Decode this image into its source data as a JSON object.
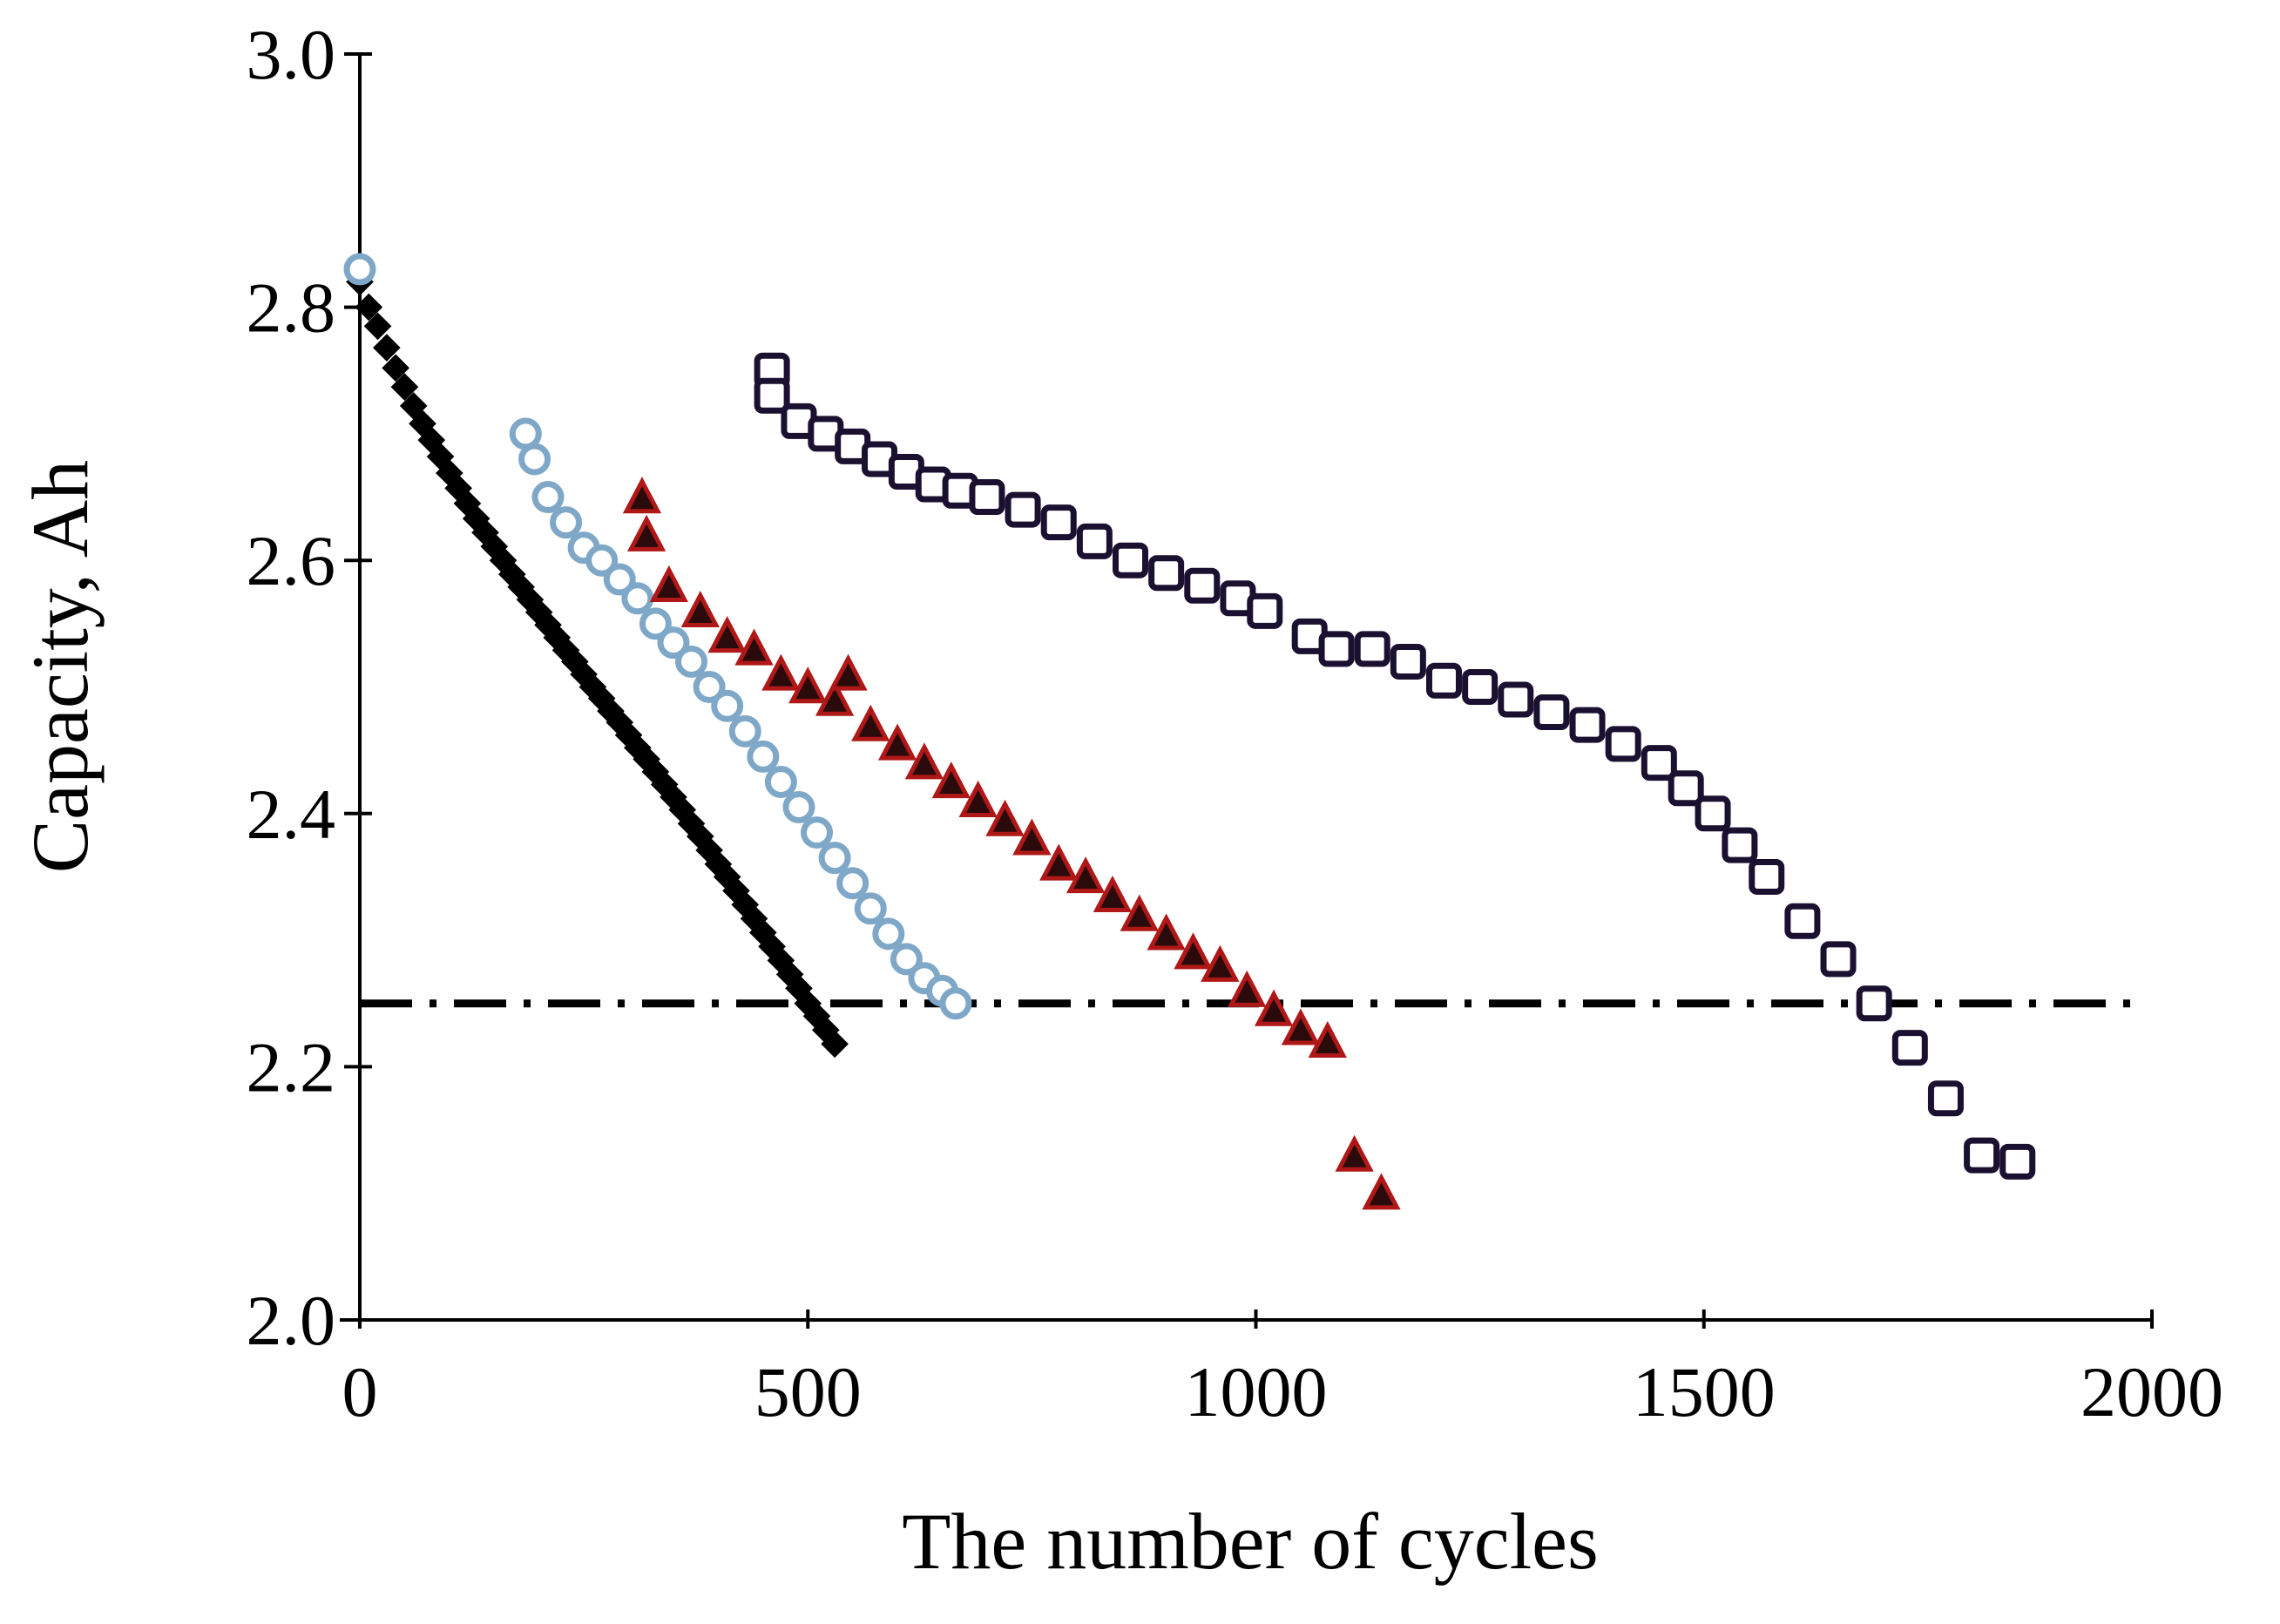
{
  "chart_data": {
    "type": "scatter",
    "title": "",
    "xlabel": "The number of cycles",
    "ylabel": "Capacity, Ah",
    "xlim": [
      0,
      2000
    ],
    "ylim": [
      2.0,
      3.0
    ],
    "xticks": [
      0,
      500,
      1000,
      1500,
      2000
    ],
    "yticks": [
      2.0,
      2.2,
      2.4,
      2.6,
      2.8,
      3.0
    ],
    "xtick_labels": [
      "0",
      "500",
      "1000",
      "1500",
      "2000"
    ],
    "ytick_labels": [
      "2.0",
      "2.2",
      "2.4",
      "2.6",
      "2.8",
      "3.0"
    ],
    "threshold": {
      "y": 2.25,
      "x_range": [
        0,
        1990
      ]
    },
    "series": [
      {
        "name": "series-filled-diamond",
        "marker": "diamond",
        "color": "#000000",
        "x": [
          0,
          10,
          20,
          30,
          40,
          50,
          60,
          70,
          80,
          90,
          100,
          110,
          120,
          130,
          140,
          150,
          160,
          170,
          180,
          190,
          200,
          210,
          220,
          230,
          240,
          250,
          260,
          270,
          280,
          290,
          300,
          310,
          320,
          330,
          340,
          350,
          360,
          370,
          380,
          390,
          400,
          410,
          420,
          430,
          440,
          450,
          460,
          470,
          480,
          490,
          500,
          510,
          520,
          530
        ],
        "y": [
          2.82,
          2.8,
          2.785,
          2.768,
          2.752,
          2.737,
          2.722,
          2.708,
          2.695,
          2.682,
          2.669,
          2.657,
          2.645,
          2.633,
          2.622,
          2.611,
          2.6,
          2.589,
          2.579,
          2.569,
          2.559,
          2.549,
          2.539,
          2.529,
          2.52,
          2.51,
          2.5,
          2.491,
          2.481,
          2.472,
          2.462,
          2.452,
          2.443,
          2.433,
          2.423,
          2.413,
          2.403,
          2.392,
          2.382,
          2.371,
          2.36,
          2.35,
          2.339,
          2.328,
          2.317,
          2.306,
          2.295,
          2.284,
          2.273,
          2.262,
          2.25,
          2.24,
          2.229,
          2.218
        ]
      },
      {
        "name": "series-open-circle",
        "marker": "circle",
        "color": "#7fa8c8",
        "x": [
          0,
          185,
          195,
          210,
          230,
          250,
          270,
          290,
          310,
          330,
          350,
          370,
          390,
          410,
          430,
          450,
          470,
          490,
          510,
          530,
          550,
          570,
          590,
          610,
          630,
          650,
          665
        ],
        "y": [
          2.83,
          2.7,
          2.68,
          2.65,
          2.63,
          2.61,
          2.6,
          2.585,
          2.57,
          2.55,
          2.535,
          2.52,
          2.5,
          2.485,
          2.465,
          2.445,
          2.425,
          2.405,
          2.385,
          2.365,
          2.345,
          2.325,
          2.305,
          2.285,
          2.27,
          2.26,
          2.25
        ]
      },
      {
        "name": "series-triangle",
        "marker": "triangle",
        "color": "#b01818",
        "x": [
          315,
          320,
          345,
          380,
          410,
          440,
          470,
          500,
          530,
          545,
          570,
          600,
          630,
          660,
          690,
          720,
          750,
          780,
          810,
          840,
          870,
          900,
          930,
          960,
          990,
          1020,
          1050,
          1080,
          1110,
          1140
        ],
        "y": [
          2.65,
          2.62,
          2.58,
          2.56,
          2.54,
          2.53,
          2.51,
          2.5,
          2.49,
          2.51,
          2.47,
          2.455,
          2.44,
          2.425,
          2.41,
          2.395,
          2.38,
          2.36,
          2.35,
          2.335,
          2.32,
          2.305,
          2.29,
          2.28,
          2.26,
          2.245,
          2.23,
          2.22,
          2.13,
          2.1
        ]
      },
      {
        "name": "series-open-square",
        "marker": "square",
        "color": "#1a1030",
        "x": [
          460,
          460,
          490,
          520,
          550,
          580,
          610,
          640,
          670,
          700,
          740,
          780,
          820,
          860,
          900,
          940,
          980,
          1010,
          1060,
          1090,
          1130,
          1170,
          1210,
          1250,
          1290,
          1330,
          1370,
          1410,
          1450,
          1480,
          1510,
          1540,
          1570,
          1610,
          1650,
          1690,
          1730,
          1770,
          1810,
          1850
        ],
        "y": [
          2.75,
          2.73,
          2.71,
          2.7,
          2.69,
          2.68,
          2.67,
          2.66,
          2.655,
          2.65,
          2.64,
          2.63,
          2.615,
          2.6,
          2.59,
          2.58,
          2.57,
          2.56,
          2.54,
          2.53,
          2.53,
          2.52,
          2.505,
          2.5,
          2.49,
          2.48,
          2.47,
          2.455,
          2.44,
          2.42,
          2.4,
          2.375,
          2.35,
          2.315,
          2.285,
          2.25,
          2.215,
          2.175,
          2.13,
          2.125
        ]
      }
    ]
  }
}
